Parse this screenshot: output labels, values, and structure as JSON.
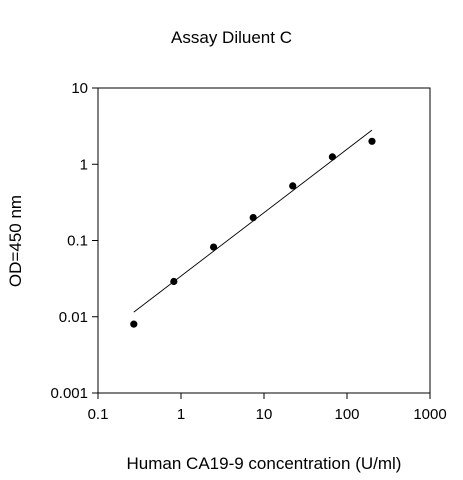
{
  "chart_data": {
    "type": "scatter",
    "title": "Assay Diluent C",
    "xlabel": "Human CA19-9 concentration (U/ml)",
    "ylabel": "OD=450 nm",
    "xscale": "log",
    "yscale": "log",
    "xlim": [
      0.1,
      1000
    ],
    "ylim": [
      0.001,
      10
    ],
    "xticks": [
      0.1,
      1,
      10,
      100,
      1000
    ],
    "xtick_labels": [
      "0.1",
      "1",
      "10",
      "100",
      "1000"
    ],
    "yticks": [
      0.001,
      0.01,
      0.1,
      1,
      10
    ],
    "ytick_labels": [
      "0.001",
      "0.01",
      "0.1",
      "1",
      "10"
    ],
    "grid": false,
    "legend": false,
    "points": [
      {
        "x": 0.27,
        "y": 0.008
      },
      {
        "x": 0.82,
        "y": 0.029
      },
      {
        "x": 2.47,
        "y": 0.082
      },
      {
        "x": 7.41,
        "y": 0.2
      },
      {
        "x": 22.2,
        "y": 0.52
      },
      {
        "x": 66.7,
        "y": 1.25
      },
      {
        "x": 200,
        "y": 2.0
      }
    ],
    "fit_line": [
      {
        "x": 0.27,
        "y": 0.0115
      },
      {
        "x": 200,
        "y": 2.8
      }
    ],
    "colors": {
      "points": "#000000",
      "line": "#000000",
      "axes": "#000000"
    }
  }
}
